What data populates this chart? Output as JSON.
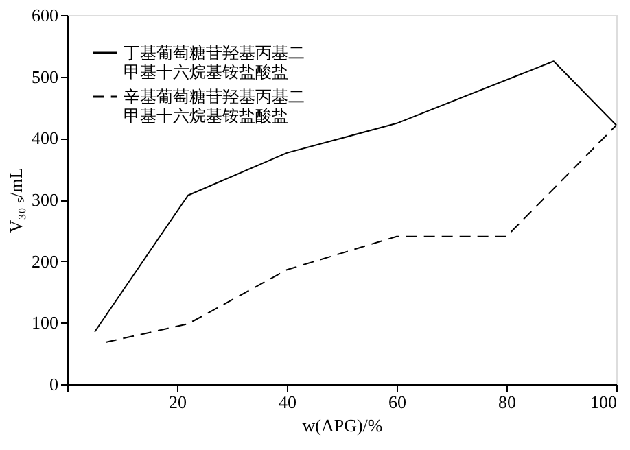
{
  "chart_data": {
    "type": "line",
    "xlabel": "w(APG)/%",
    "ylabel": "V₃₀ ₛ/mL",
    "xlim": [
      0,
      100
    ],
    "xticks": [
      {
        "value": 0,
        "label": null
      },
      20,
      40,
      60,
      80,
      100
    ],
    "ylim": [
      0,
      600
    ],
    "yticks": [
      0,
      100,
      200,
      300,
      400,
      500,
      600
    ],
    "grid": false,
    "legend": "top left",
    "marker": "none",
    "series": [
      {
        "name": "丁基葡萄糖苷羟基丙基二甲基十六烷基铵盐酸盐",
        "color": "#000000",
        "line_style": "solid",
        "x": [
          5,
          22,
          40,
          60,
          88.6,
          100
        ],
        "values": [
          85,
          307,
          376,
          424,
          525,
          421
        ]
      },
      {
        "name": "辛基葡萄糖苷羟基丙基二甲基十六烷基铵盐酸盐",
        "color": "#000000",
        "line_style": "dashed",
        "x": [
          7,
          22,
          40,
          60,
          80,
          100
        ],
        "values": [
          68,
          98,
          186,
          240,
          240,
          421
        ]
      }
    ]
  }
}
